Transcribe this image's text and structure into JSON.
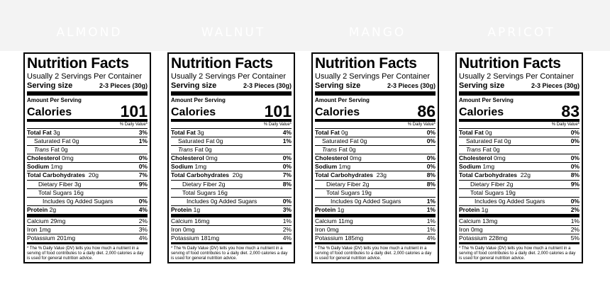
{
  "backdrop_words": [
    "ALMOND",
    "WALNUT",
    "MANGO",
    "APRICOT"
  ],
  "common": {
    "title": "Nutrition Facts",
    "servings_per_container": "Usually 2 Servings Per Container",
    "serving_size_label": "Serving size",
    "serving_size_value": "2-3 Pieces (30g)",
    "amount_per_serving": "Amount Per Serving",
    "calories_label": "Calories",
    "daily_value_header": "% Daily Value*",
    "labels": {
      "total_fat": "Total Fat",
      "saturated_fat": "Saturated Fat",
      "trans_fat_word": "Trans",
      "trans_fat_rest": " Fat",
      "cholesterol": "Cholesterol",
      "sodium": "Sodium",
      "total_carbs": "Total Carbohydrates",
      "fiber": "Dietary Fiber",
      "sugars": "Total Sugars",
      "added_sugars_prefix": "Includes",
      "added_sugars_suffix": "Added Sugars",
      "protein": "Protein",
      "calcium": "Calcium",
      "iron": "Iron",
      "potassium": "Potassium"
    },
    "footnote": "* The % Daily Value (DV) tells you how much a nutrient in a serving of food contributes to a daily diet. 2,000 calories a day is used for general nutrition advice."
  },
  "labels": [
    {
      "calories": "101",
      "total_fat": "3g",
      "total_fat_dv": "3%",
      "saturated_fat": "0g",
      "saturated_fat_dv": "1%",
      "trans_fat": "0g",
      "cholesterol": "0mg",
      "cholesterol_dv": "0%",
      "sodium": "1mg",
      "sodium_dv": "0%",
      "total_carbs": "20g",
      "total_carbs_dv": "7%",
      "fiber": "3g",
      "fiber_dv": "9%",
      "sugars": "16g",
      "added_sugars": "0g",
      "added_sugars_dv": "0%",
      "protein": "2g",
      "protein_dv": "4%",
      "calcium": "29mg",
      "calcium_dv": "2%",
      "iron": "1mg",
      "iron_dv": "3%",
      "potassium": "201mg",
      "potassium_dv": "4%"
    },
    {
      "calories": "101",
      "total_fat": "3g",
      "total_fat_dv": "4%",
      "saturated_fat": "0g",
      "saturated_fat_dv": "1%",
      "trans_fat": "0g",
      "cholesterol": "0mg",
      "cholesterol_dv": "0%",
      "sodium": "1mg",
      "sodium_dv": "0%",
      "total_carbs": "20g",
      "total_carbs_dv": "7%",
      "fiber": "2g",
      "fiber_dv": "8%",
      "sugars": "16g",
      "added_sugars": "0g",
      "added_sugars_dv": "0%",
      "protein": "1g",
      "protein_dv": "3%",
      "calcium": "16mg",
      "calcium_dv": "1%",
      "iron": "0mg",
      "iron_dv": "2%",
      "potassium": "181mg",
      "potassium_dv": "4%"
    },
    {
      "calories": "86",
      "total_fat": "0g",
      "total_fat_dv": "0%",
      "saturated_fat": "0g",
      "saturated_fat_dv": "0%",
      "trans_fat": "0g",
      "cholesterol": "0mg",
      "cholesterol_dv": "0%",
      "sodium": "1mg",
      "sodium_dv": "0%",
      "total_carbs": "23g",
      "total_carbs_dv": "8%",
      "fiber": "2g",
      "fiber_dv": "8%",
      "sugars": "19g",
      "added_sugars": "0g",
      "added_sugars_dv": "1%",
      "protein": "1g",
      "protein_dv": "1%",
      "calcium": "11mg",
      "calcium_dv": "1%",
      "iron": "0mg",
      "iron_dv": "1%",
      "potassium": "185mg",
      "potassium_dv": "4%"
    },
    {
      "calories": "83",
      "total_fat": "0g",
      "total_fat_dv": "0%",
      "saturated_fat": "0g",
      "saturated_fat_dv": "0%",
      "trans_fat": "0g",
      "cholesterol": "0mg",
      "cholesterol_dv": "0%",
      "sodium": "1mg",
      "sodium_dv": "0%",
      "total_carbs": "22g",
      "total_carbs_dv": "8%",
      "fiber": "2g",
      "fiber_dv": "9%",
      "sugars": "19g",
      "added_sugars": "0g",
      "added_sugars_dv": "0%",
      "protein": "1g",
      "protein_dv": "2%",
      "calcium": "13mg",
      "calcium_dv": "1%",
      "iron": "0mg",
      "iron_dv": "2%",
      "potassium": "228mg",
      "potassium_dv": "5%"
    }
  ]
}
